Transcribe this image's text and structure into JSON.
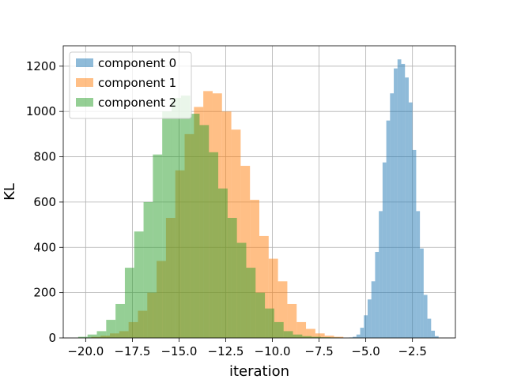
{
  "chart_data": {
    "type": "bar",
    "subtype": "histogram-overlay",
    "title": "",
    "xlabel": "iteration",
    "ylabel": "KL",
    "xlim": [
      -21.2,
      -0.2
    ],
    "ylim": [
      0,
      1290
    ],
    "xticks": [
      -20.0,
      -17.5,
      -15.0,
      -12.5,
      -10.0,
      -7.5,
      -5.0,
      -2.5
    ],
    "xtick_labels": [
      "−20.0",
      "−17.5",
      "−15.0",
      "−12.5",
      "−10.0",
      "−7.5",
      "−5.0",
      "−2.5"
    ],
    "yticks": [
      0,
      200,
      400,
      600,
      800,
      1000,
      1200
    ],
    "ytick_labels": [
      "0",
      "200",
      "400",
      "600",
      "800",
      "1000",
      "1200"
    ],
    "grid": true,
    "legend": "top-left",
    "bar_opacity": 0.5,
    "series": [
      {
        "name": "component 0",
        "color": "#1f77b4",
        "bin_start": -5.9,
        "bin_width": 0.2,
        "counts": [
          2,
          5,
          15,
          45,
          100,
          170,
          250,
          380,
          560,
          775,
          960,
          1080,
          1190,
          1230,
          1210,
          1150,
          1040,
          830,
          560,
          395,
          190,
          85,
          32,
          8
        ]
      },
      {
        "name": "component 1",
        "color": "#ff7f0e",
        "bin_start": -19.7,
        "bin_width": 0.5,
        "counts": [
          5,
          10,
          20,
          30,
          70,
          120,
          200,
          340,
          530,
          740,
          900,
          1020,
          1090,
          1080,
          1000,
          920,
          760,
          610,
          450,
          350,
          250,
          150,
          70,
          40,
          20,
          10,
          5
        ]
      },
      {
        "name": "component 2",
        "color": "#2ca02c",
        "bin_start": -20.4,
        "bin_width": 0.5,
        "counts": [
          5,
          15,
          30,
          80,
          150,
          310,
          470,
          600,
          810,
          1000,
          1060,
          1070,
          990,
          940,
          820,
          660,
          530,
          420,
          310,
          200,
          130,
          70,
          30,
          15,
          8,
          5,
          3,
          2
        ]
      }
    ]
  }
}
